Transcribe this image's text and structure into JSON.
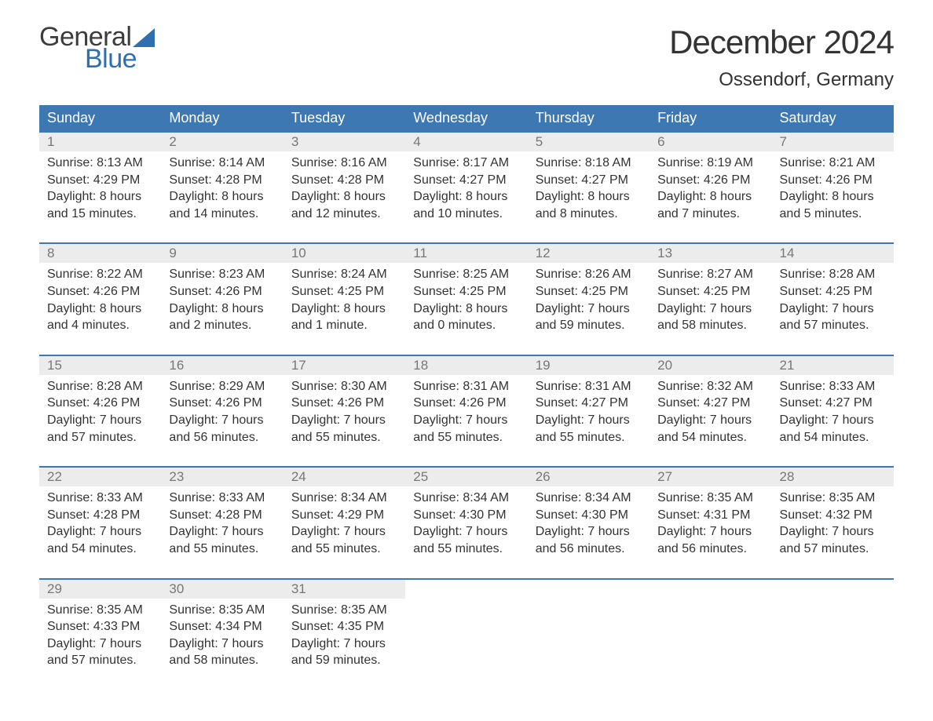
{
  "brand": {
    "word1": "General",
    "word2": "Blue",
    "text_color": "#3c3c3c",
    "accent_color": "#2f6fb0"
  },
  "title": "December 2024",
  "location": "Ossendorf, Germany",
  "colors": {
    "header_bg": "#3e78b3",
    "header_text": "#ffffff",
    "row_separator": "#3e78b3",
    "daynum_bg": "#ececec",
    "daynum_text": "#777777",
    "body_text": "#333333",
    "page_bg": "#ffffff"
  },
  "typography": {
    "title_fontsize": 42,
    "location_fontsize": 24,
    "header_fontsize": 18,
    "daynum_fontsize": 17,
    "body_fontsize": 16
  },
  "layout": {
    "columns": 7,
    "weeks": 5,
    "first_day_column_index": 0
  },
  "weekday_headers": [
    "Sunday",
    "Monday",
    "Tuesday",
    "Wednesday",
    "Thursday",
    "Friday",
    "Saturday"
  ],
  "days": [
    {
      "num": "1",
      "sunrise": "Sunrise: 8:13 AM",
      "sunset": "Sunset: 4:29 PM",
      "dl1": "Daylight: 8 hours",
      "dl2": "and 15 minutes."
    },
    {
      "num": "2",
      "sunrise": "Sunrise: 8:14 AM",
      "sunset": "Sunset: 4:28 PM",
      "dl1": "Daylight: 8 hours",
      "dl2": "and 14 minutes."
    },
    {
      "num": "3",
      "sunrise": "Sunrise: 8:16 AM",
      "sunset": "Sunset: 4:28 PM",
      "dl1": "Daylight: 8 hours",
      "dl2": "and 12 minutes."
    },
    {
      "num": "4",
      "sunrise": "Sunrise: 8:17 AM",
      "sunset": "Sunset: 4:27 PM",
      "dl1": "Daylight: 8 hours",
      "dl2": "and 10 minutes."
    },
    {
      "num": "5",
      "sunrise": "Sunrise: 8:18 AM",
      "sunset": "Sunset: 4:27 PM",
      "dl1": "Daylight: 8 hours",
      "dl2": "and 8 minutes."
    },
    {
      "num": "6",
      "sunrise": "Sunrise: 8:19 AM",
      "sunset": "Sunset: 4:26 PM",
      "dl1": "Daylight: 8 hours",
      "dl2": "and 7 minutes."
    },
    {
      "num": "7",
      "sunrise": "Sunrise: 8:21 AM",
      "sunset": "Sunset: 4:26 PM",
      "dl1": "Daylight: 8 hours",
      "dl2": "and 5 minutes."
    },
    {
      "num": "8",
      "sunrise": "Sunrise: 8:22 AM",
      "sunset": "Sunset: 4:26 PM",
      "dl1": "Daylight: 8 hours",
      "dl2": "and 4 minutes."
    },
    {
      "num": "9",
      "sunrise": "Sunrise: 8:23 AM",
      "sunset": "Sunset: 4:26 PM",
      "dl1": "Daylight: 8 hours",
      "dl2": "and 2 minutes."
    },
    {
      "num": "10",
      "sunrise": "Sunrise: 8:24 AM",
      "sunset": "Sunset: 4:25 PM",
      "dl1": "Daylight: 8 hours",
      "dl2": "and 1 minute."
    },
    {
      "num": "11",
      "sunrise": "Sunrise: 8:25 AM",
      "sunset": "Sunset: 4:25 PM",
      "dl1": "Daylight: 8 hours",
      "dl2": "and 0 minutes."
    },
    {
      "num": "12",
      "sunrise": "Sunrise: 8:26 AM",
      "sunset": "Sunset: 4:25 PM",
      "dl1": "Daylight: 7 hours",
      "dl2": "and 59 minutes."
    },
    {
      "num": "13",
      "sunrise": "Sunrise: 8:27 AM",
      "sunset": "Sunset: 4:25 PM",
      "dl1": "Daylight: 7 hours",
      "dl2": "and 58 minutes."
    },
    {
      "num": "14",
      "sunrise": "Sunrise: 8:28 AM",
      "sunset": "Sunset: 4:25 PM",
      "dl1": "Daylight: 7 hours",
      "dl2": "and 57 minutes."
    },
    {
      "num": "15",
      "sunrise": "Sunrise: 8:28 AM",
      "sunset": "Sunset: 4:26 PM",
      "dl1": "Daylight: 7 hours",
      "dl2": "and 57 minutes."
    },
    {
      "num": "16",
      "sunrise": "Sunrise: 8:29 AM",
      "sunset": "Sunset: 4:26 PM",
      "dl1": "Daylight: 7 hours",
      "dl2": "and 56 minutes."
    },
    {
      "num": "17",
      "sunrise": "Sunrise: 8:30 AM",
      "sunset": "Sunset: 4:26 PM",
      "dl1": "Daylight: 7 hours",
      "dl2": "and 55 minutes."
    },
    {
      "num": "18",
      "sunrise": "Sunrise: 8:31 AM",
      "sunset": "Sunset: 4:26 PM",
      "dl1": "Daylight: 7 hours",
      "dl2": "and 55 minutes."
    },
    {
      "num": "19",
      "sunrise": "Sunrise: 8:31 AM",
      "sunset": "Sunset: 4:27 PM",
      "dl1": "Daylight: 7 hours",
      "dl2": "and 55 minutes."
    },
    {
      "num": "20",
      "sunrise": "Sunrise: 8:32 AM",
      "sunset": "Sunset: 4:27 PM",
      "dl1": "Daylight: 7 hours",
      "dl2": "and 54 minutes."
    },
    {
      "num": "21",
      "sunrise": "Sunrise: 8:33 AM",
      "sunset": "Sunset: 4:27 PM",
      "dl1": "Daylight: 7 hours",
      "dl2": "and 54 minutes."
    },
    {
      "num": "22",
      "sunrise": "Sunrise: 8:33 AM",
      "sunset": "Sunset: 4:28 PM",
      "dl1": "Daylight: 7 hours",
      "dl2": "and 54 minutes."
    },
    {
      "num": "23",
      "sunrise": "Sunrise: 8:33 AM",
      "sunset": "Sunset: 4:28 PM",
      "dl1": "Daylight: 7 hours",
      "dl2": "and 55 minutes."
    },
    {
      "num": "24",
      "sunrise": "Sunrise: 8:34 AM",
      "sunset": "Sunset: 4:29 PM",
      "dl1": "Daylight: 7 hours",
      "dl2": "and 55 minutes."
    },
    {
      "num": "25",
      "sunrise": "Sunrise: 8:34 AM",
      "sunset": "Sunset: 4:30 PM",
      "dl1": "Daylight: 7 hours",
      "dl2": "and 55 minutes."
    },
    {
      "num": "26",
      "sunrise": "Sunrise: 8:34 AM",
      "sunset": "Sunset: 4:30 PM",
      "dl1": "Daylight: 7 hours",
      "dl2": "and 56 minutes."
    },
    {
      "num": "27",
      "sunrise": "Sunrise: 8:35 AM",
      "sunset": "Sunset: 4:31 PM",
      "dl1": "Daylight: 7 hours",
      "dl2": "and 56 minutes."
    },
    {
      "num": "28",
      "sunrise": "Sunrise: 8:35 AM",
      "sunset": "Sunset: 4:32 PM",
      "dl1": "Daylight: 7 hours",
      "dl2": "and 57 minutes."
    },
    {
      "num": "29",
      "sunrise": "Sunrise: 8:35 AM",
      "sunset": "Sunset: 4:33 PM",
      "dl1": "Daylight: 7 hours",
      "dl2": "and 57 minutes."
    },
    {
      "num": "30",
      "sunrise": "Sunrise: 8:35 AM",
      "sunset": "Sunset: 4:34 PM",
      "dl1": "Daylight: 7 hours",
      "dl2": "and 58 minutes."
    },
    {
      "num": "31",
      "sunrise": "Sunrise: 8:35 AM",
      "sunset": "Sunset: 4:35 PM",
      "dl1": "Daylight: 7 hours",
      "dl2": "and 59 minutes."
    }
  ]
}
